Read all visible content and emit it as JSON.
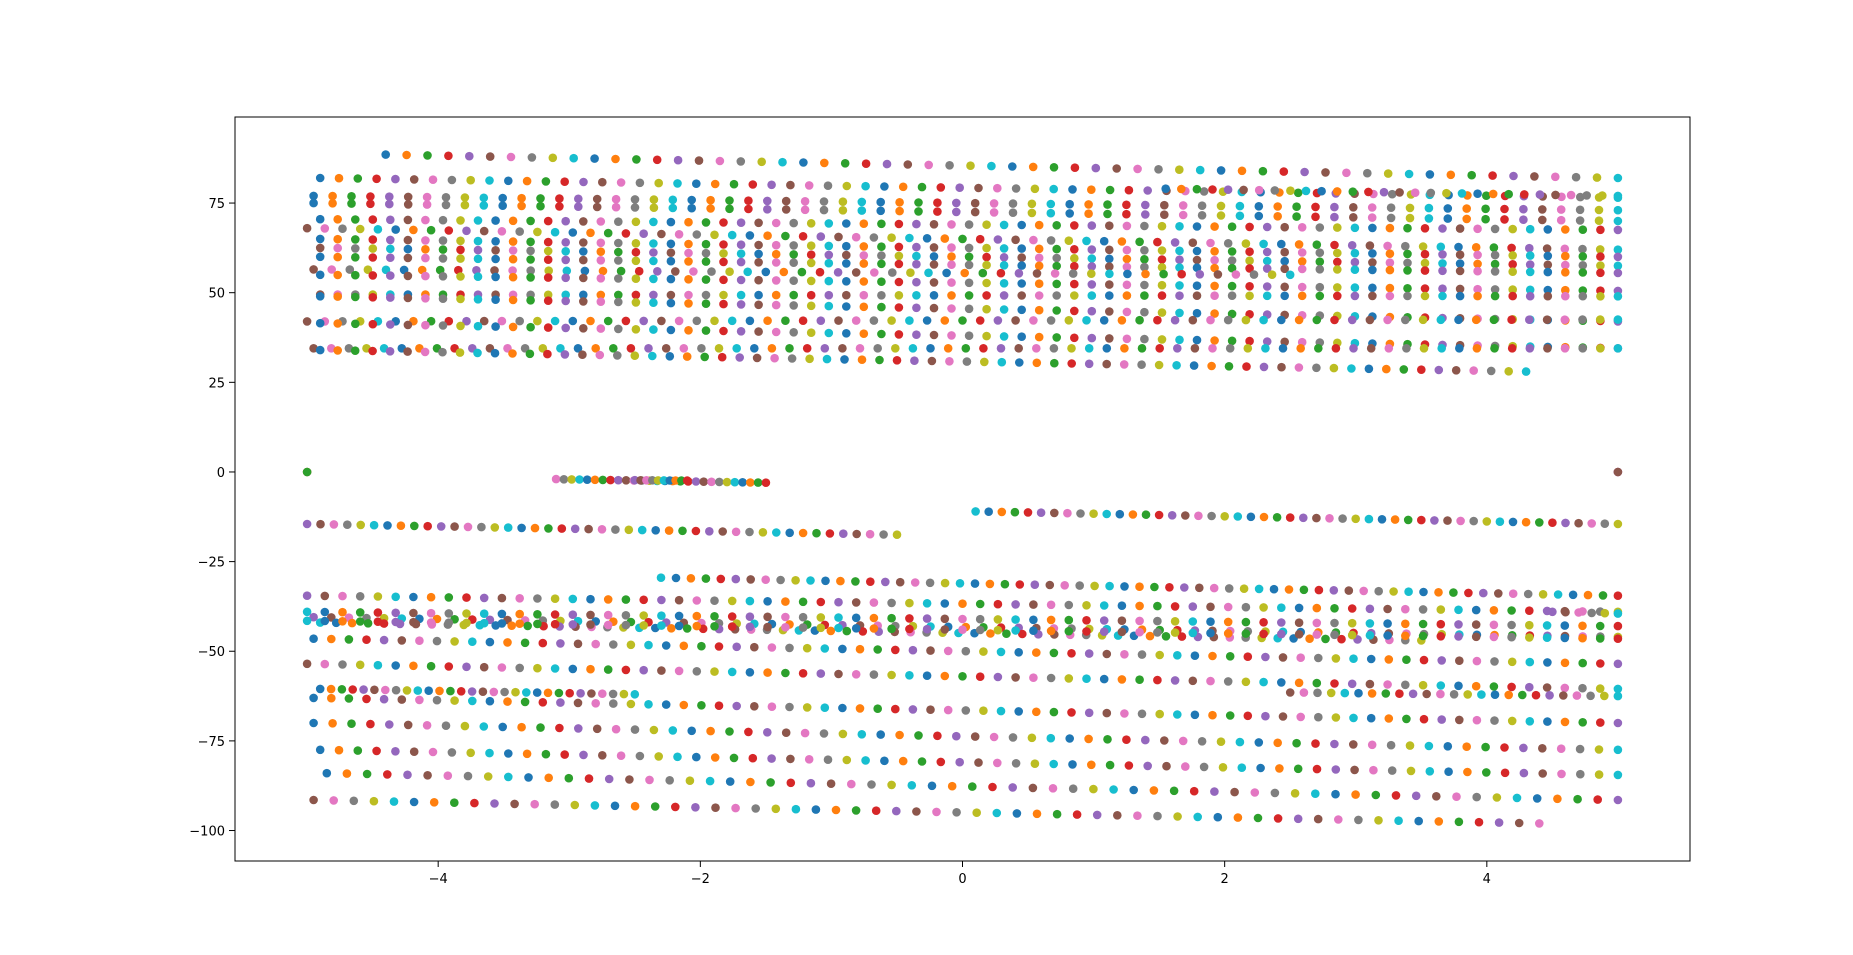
{
  "chart_data": {
    "type": "scatter",
    "title": "",
    "xlabel": "",
    "ylabel": "",
    "xlim": [
      -5.55,
      5.55
    ],
    "ylim": [
      -108.5,
      99
    ],
    "grid": false,
    "legend": "none",
    "xticks": [
      -4,
      -2,
      0,
      2,
      4
    ],
    "yticks": [
      75,
      50,
      25,
      0,
      -25,
      -50,
      -75,
      -100
    ],
    "xtick_labels": [
      "−4",
      "−2",
      "0",
      "2",
      "4"
    ],
    "ytick_labels": [
      "75",
      "50",
      "25",
      "0",
      "−25",
      "−50",
      "−75",
      "−100"
    ],
    "marker": "circle",
    "palette": [
      "#1f77b4",
      "#ff7f0e",
      "#2ca02c",
      "#d62728",
      "#9467bd",
      "#8c564b",
      "#e377c2",
      "#7f7f7f",
      "#bcbd22",
      "#17becf"
    ],
    "series_groups": [
      {
        "x0": -4.4,
        "x1": 5.0,
        "y0": 88.5,
        "y1": 82.0,
        "n": 60
      },
      {
        "x0": -4.9,
        "x1": 5.0,
        "y0": 82.0,
        "y1": 76.5,
        "n": 70
      },
      {
        "x0": -4.95,
        "x1": 5.0,
        "y0": 77.0,
        "y1": 73.0,
        "n": 70
      },
      {
        "x0": -4.95,
        "x1": 5.0,
        "y0": 75.0,
        "y1": 70.0,
        "n": 70
      },
      {
        "x0": 1.55,
        "x1": 5.0,
        "y0": 79.0,
        "y1": 77.0,
        "n": 30
      },
      {
        "x0": -4.9,
        "x1": 5.0,
        "y0": 70.5,
        "y1": 67.5,
        "n": 75
      },
      {
        "x0": -5.0,
        "x1": 5.0,
        "y0": 68.0,
        "y1": 62.0,
        "n": 75
      },
      {
        "x0": -4.9,
        "x1": 5.0,
        "y0": 65.0,
        "y1": 60.0,
        "n": 75
      },
      {
        "x0": -4.9,
        "x1": 5.0,
        "y0": 62.5,
        "y1": 57.5,
        "n": 75
      },
      {
        "x0": -4.9,
        "x1": 5.0,
        "y0": 60.0,
        "y1": 55.5,
        "n": 75
      },
      {
        "x0": -4.95,
        "x1": 2.5,
        "y0": 56.5,
        "y1": 55.0,
        "n": 55
      },
      {
        "x0": -4.9,
        "x1": 5.0,
        "y0": 55.0,
        "y1": 50.5,
        "n": 75
      },
      {
        "x0": -4.9,
        "x1": 5.0,
        "y0": 49.5,
        "y1": 49.0,
        "n": 75
      },
      {
        "x0": -4.9,
        "x1": 5.0,
        "y0": 49.0,
        "y1": 42.0,
        "n": 75
      },
      {
        "x0": -5.0,
        "x1": 5.0,
        "y0": 42.0,
        "y1": 42.5,
        "n": 75
      },
      {
        "x0": -4.9,
        "x1": 5.0,
        "y0": 41.5,
        "y1": 34.5,
        "n": 75
      },
      {
        "x0": -4.95,
        "x1": 5.0,
        "y0": 34.5,
        "y1": 34.5,
        "n": 75
      },
      {
        "x0": -4.9,
        "x1": 4.3,
        "y0": 34.0,
        "y1": 28.0,
        "n": 70
      },
      {
        "x0": -5.0,
        "x1": -5.0,
        "y0": 0.0,
        "y1": 0.0,
        "n": 3
      },
      {
        "x0": 5.0,
        "x1": 5.0,
        "y0": 0.0,
        "y1": 0.0,
        "n": 3
      },
      {
        "x0": -3.1,
        "x1": -1.5,
        "y0": -2.0,
        "y1": -3.0,
        "n": 28
      },
      {
        "x0": -2.5,
        "x1": -2.1,
        "y0": -2.3,
        "y1": -2.4,
        "n": 10
      },
      {
        "x0": -5.0,
        "x1": -0.5,
        "y0": -14.5,
        "y1": -17.5,
        "n": 45
      },
      {
        "x0": 0.1,
        "x1": 5.0,
        "y0": -11.0,
        "y1": -14.5,
        "n": 50
      },
      {
        "x0": -2.3,
        "x1": 5.0,
        "y0": -29.5,
        "y1": -34.5,
        "n": 65
      },
      {
        "x0": -5.0,
        "x1": 5.0,
        "y0": -34.5,
        "y1": -39.0,
        "n": 75
      },
      {
        "x0": -5.0,
        "x1": 5.0,
        "y0": -39.0,
        "y1": -43.0,
        "n": 75
      },
      {
        "x0": -4.95,
        "x1": 5.0,
        "y0": -40.5,
        "y1": -46.0,
        "n": 75
      },
      {
        "x0": -4.9,
        "x1": 3.5,
        "y0": -42.0,
        "y1": -47.0,
        "n": 70
      },
      {
        "x0": -5.0,
        "x1": 5.0,
        "y0": -41.5,
        "y1": -46.5,
        "n": 75
      },
      {
        "x0": 4.5,
        "x1": 5.0,
        "y0": -39.0,
        "y1": -39.5,
        "n": 6
      },
      {
        "x0": -4.95,
        "x1": 5.0,
        "y0": -46.5,
        "y1": -53.5,
        "n": 75
      },
      {
        "x0": -5.0,
        "x1": 5.0,
        "y0": -53.5,
        "y1": -60.5,
        "n": 75
      },
      {
        "x0": -4.9,
        "x1": -2.5,
        "y0": -60.5,
        "y1": -62.0,
        "n": 30
      },
      {
        "x0": -4.95,
        "x1": 5.0,
        "y0": -63.0,
        "y1": -70.0,
        "n": 75
      },
      {
        "x0": 2.5,
        "x1": 5.0,
        "y0": -61.5,
        "y1": -62.5,
        "n": 25
      },
      {
        "x0": -4.95,
        "x1": 5.0,
        "y0": -70.0,
        "y1": -77.5,
        "n": 70
      },
      {
        "x0": -4.9,
        "x1": 5.0,
        "y0": -77.5,
        "y1": -84.5,
        "n": 70
      },
      {
        "x0": -4.85,
        "x1": 5.0,
        "y0": -84.0,
        "y1": -91.5,
        "n": 65
      },
      {
        "x0": -4.95,
        "x1": 4.4,
        "y0": -91.5,
        "y1": -98.0,
        "n": 62
      }
    ]
  }
}
